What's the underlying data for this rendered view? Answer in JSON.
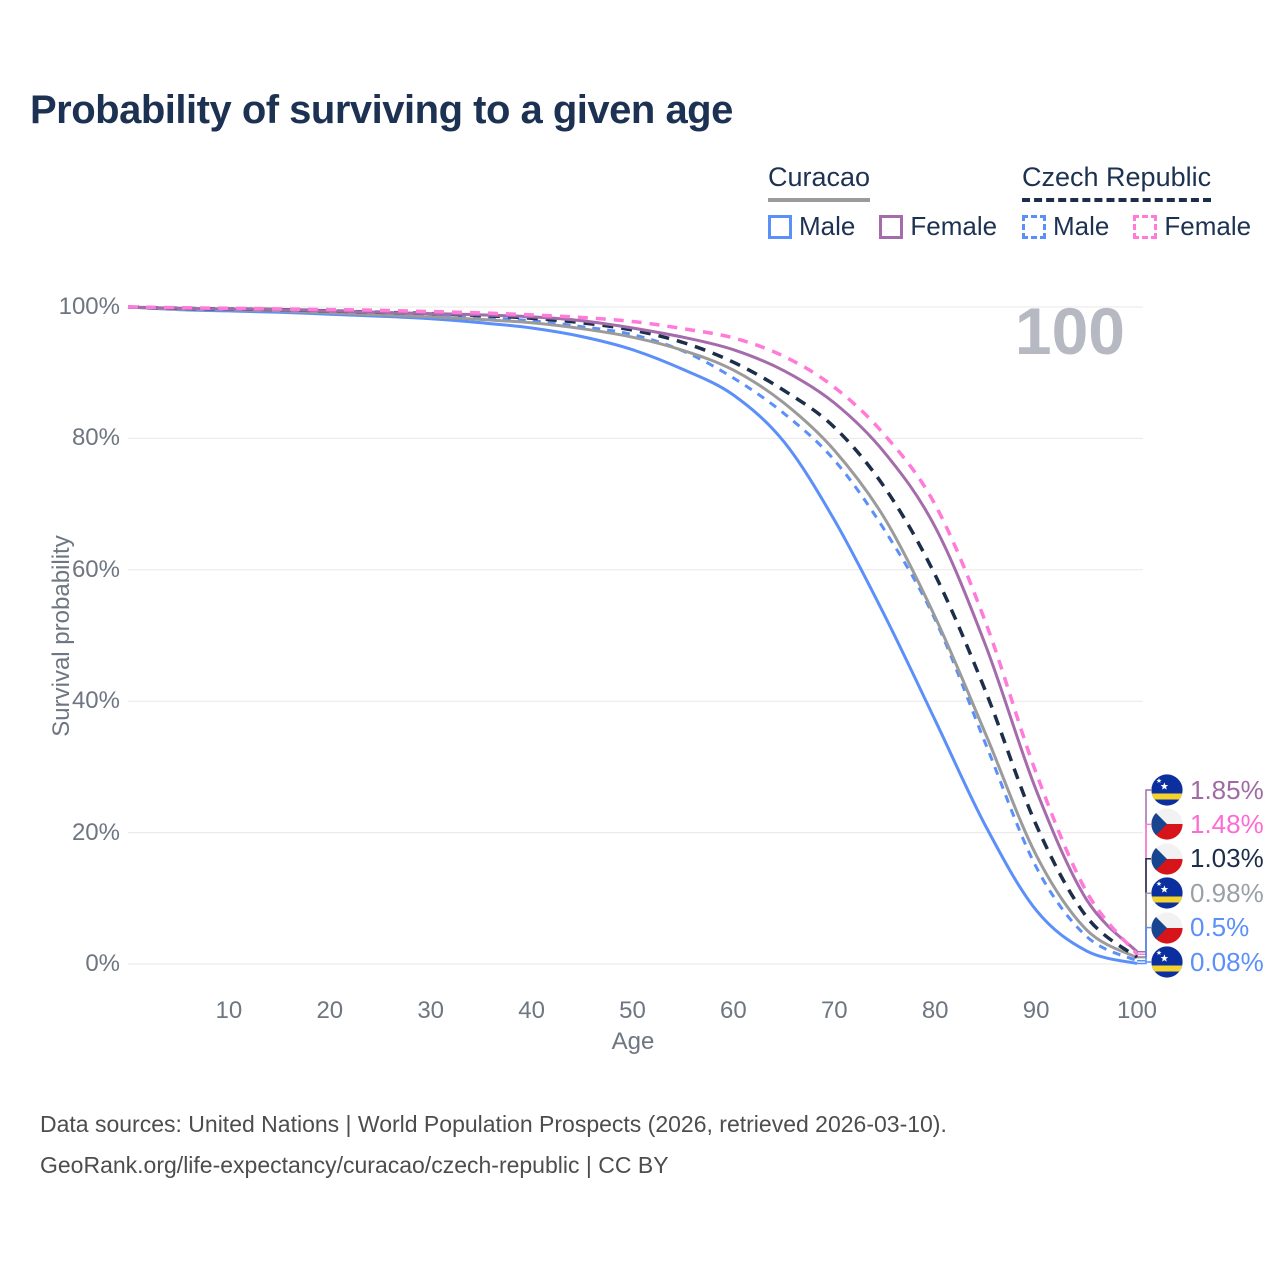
{
  "title": "Probability of surviving to a given age",
  "watermark_age": "100",
  "legend": {
    "groups": [
      {
        "name": "Curacao",
        "underline": {
          "style": "solid",
          "color": "#9b9b9b"
        },
        "items": [
          {
            "label": "Male",
            "color": "#5b8ff9",
            "dash": false
          },
          {
            "label": "Female",
            "color": "#a56cab",
            "dash": false
          }
        ]
      },
      {
        "name": "Czech Republic",
        "underline": {
          "style": "dashed",
          "color": "#1c2e4a"
        },
        "items": [
          {
            "label": "Male",
            "color": "#5b8ff9",
            "dash": true
          },
          {
            "label": "Female",
            "color": "#ff7ad9",
            "dash": true
          }
        ]
      }
    ]
  },
  "chart_data": {
    "type": "line",
    "title": "Probability of surviving to a given age",
    "xlabel": "Age",
    "ylabel": "Survival probability",
    "xlim": [
      0,
      100
    ],
    "ylim": [
      0,
      100
    ],
    "grid": "horizontal",
    "x_ticks": [
      10,
      20,
      30,
      40,
      50,
      60,
      70,
      80,
      90,
      100
    ],
    "y_ticks": [
      0,
      20,
      40,
      60,
      80,
      100
    ],
    "y_tick_labels": [
      "0%",
      "20%",
      "40%",
      "60%",
      "80%",
      "100%"
    ],
    "x": [
      0,
      5,
      10,
      15,
      20,
      25,
      30,
      35,
      40,
      45,
      50,
      55,
      60,
      65,
      70,
      75,
      80,
      85,
      90,
      95,
      100
    ],
    "series": [
      {
        "name": "Curacao Male",
        "country": "Curacao",
        "group": "Male",
        "color": "#5b8ff9",
        "dash": null,
        "width": 3,
        "values": [
          100,
          99.6,
          99.4,
          99.2,
          98.9,
          98.6,
          98.2,
          97.6,
          96.8,
          95.5,
          93.5,
          90.5,
          86.6,
          79.5,
          67.6,
          53.0,
          37.1,
          21.0,
          8.2,
          2.0,
          0.08
        ]
      },
      {
        "name": "Czech Republic Male",
        "country": "Czech Republic",
        "group": "Male",
        "color": "#5b8ff9",
        "dash": "8 7",
        "width": 3,
        "values": [
          100,
          99.8,
          99.7,
          99.5,
          99.3,
          99.0,
          98.7,
          98.4,
          97.9,
          97.0,
          95.8,
          93.3,
          89.2,
          83.8,
          76.7,
          66.0,
          52.4,
          33.5,
          14.8,
          4.2,
          0.5
        ]
      },
      {
        "name": "Curacao",
        "country": "Curacao",
        "group": "Total",
        "color": "#9b9b9b",
        "dash": null,
        "width": 3,
        "values": [
          100,
          99.7,
          99.6,
          99.4,
          99.1,
          98.8,
          98.5,
          98.1,
          97.6,
          96.7,
          95.4,
          93.4,
          90.4,
          85.4,
          78.2,
          67.8,
          52.8,
          35.0,
          16.6,
          5.2,
          0.98
        ]
      },
      {
        "name": "Czech Republic",
        "country": "Czech Republic",
        "group": "Total",
        "color": "#1c2e4a",
        "dash": "11 8",
        "width": 3.5,
        "values": [
          100,
          99.8,
          99.7,
          99.6,
          99.4,
          99.2,
          99.0,
          98.7,
          98.3,
          97.6,
          96.5,
          94.6,
          91.6,
          87.3,
          81.7,
          72.5,
          59.2,
          41.5,
          21.2,
          7.2,
          1.03
        ]
      },
      {
        "name": "Curacao Female",
        "country": "Curacao",
        "group": "Female",
        "color": "#a56cab",
        "dash": null,
        "width": 3,
        "values": [
          100,
          99.8,
          99.7,
          99.6,
          99.4,
          99.2,
          99.0,
          98.8,
          98.5,
          97.9,
          96.8,
          95.4,
          93.5,
          90.3,
          85.4,
          77.8,
          66.5,
          48.5,
          26.5,
          9.8,
          1.85
        ]
      },
      {
        "name": "Czech Republic Female",
        "country": "Czech Republic",
        "group": "Female",
        "color": "#ff7ad9",
        "dash": "10 8",
        "width": 3.5,
        "values": [
          100,
          99.9,
          99.8,
          99.7,
          99.6,
          99.5,
          99.3,
          99.1,
          98.8,
          98.4,
          97.8,
          96.7,
          95.3,
          92.5,
          87.8,
          80.5,
          69.9,
          52.0,
          29.1,
          11.0,
          1.48
        ]
      }
    ]
  },
  "end_labels": [
    {
      "text": "1.85%",
      "color": "#a06ba5",
      "flag": "curacao",
      "series": "Curacao Female"
    },
    {
      "text": "1.48%",
      "color": "#ff6ad5",
      "flag": "czech",
      "series": "Czech Republic Female"
    },
    {
      "text": "1.03%",
      "color": "#1c2e4a",
      "flag": "czech",
      "series": "Czech Republic"
    },
    {
      "text": "0.98%",
      "color": "#9aa0a6",
      "flag": "curacao",
      "series": "Curacao"
    },
    {
      "text": "0.5%",
      "color": "#5b8ff9",
      "flag": "czech",
      "series": "Czech Republic Male"
    },
    {
      "text": "0.08%",
      "color": "#5b8ff9",
      "flag": "curacao",
      "series": "Curacao Male"
    }
  ],
  "footer": {
    "line1": "Data sources: United Nations | World Population Prospects (2026, retrieved 2026-03-10).",
    "line2": "GeoRank.org/life-expectancy/curacao/czech-republic | CC BY"
  }
}
